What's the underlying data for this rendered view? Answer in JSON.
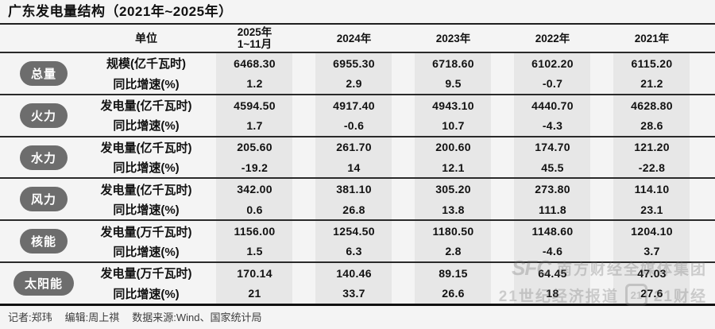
{
  "page": {
    "title": "广东发电量结构（2021年~2025年）",
    "footer": {
      "reporter": "记者:郑玮",
      "editor": "编辑:周上祺",
      "source": "数据来源:Wind、国家统计局"
    },
    "watermark": {
      "brand": "SFC",
      "line1": "南方财经全媒体集团",
      "line2a": "21世纪经济报道",
      "badge": "21",
      "line2b": "21财经"
    },
    "colors": {
      "background": "#f4f4f4",
      "column_band": "#e7e7e7",
      "badge": "#6d6d6d",
      "rule": "#2a2a2a"
    }
  },
  "chart_data": {
    "type": "table",
    "title": "广东发电量结构（2021年~2025年）",
    "unit_header": "单位",
    "columns": [
      {
        "line1": "2025年",
        "line2": "1~11月"
      },
      {
        "line1": "2024年",
        "line2": ""
      },
      {
        "line1": "2023年",
        "line2": ""
      },
      {
        "line1": "2022年",
        "line2": ""
      },
      {
        "line1": "2021年",
        "line2": ""
      }
    ],
    "growth_label": "同比增速(%)",
    "groups": [
      {
        "label": "总量",
        "metric_label": "规模(亿千瓦时)",
        "growth_label": "同比增速(%)",
        "values": [
          "6468.30",
          "6955.30",
          "6718.60",
          "6102.20",
          "6115.20"
        ],
        "growth": [
          "1.2",
          "2.9",
          "9.5",
          "-0.7",
          "21.2"
        ]
      },
      {
        "label": "火力",
        "metric_label": "发电量(亿千瓦时)",
        "growth_label": "同比增速(%)",
        "values": [
          "4594.50",
          "4917.40",
          "4943.10",
          "4440.70",
          "4628.80"
        ],
        "growth": [
          "1.7",
          "-0.6",
          "10.7",
          "-4.3",
          "28.6"
        ]
      },
      {
        "label": "水力",
        "metric_label": "发电量(亿千瓦时)",
        "growth_label": "同比增速(%)",
        "values": [
          "205.60",
          "261.70",
          "200.60",
          "174.70",
          "121.20"
        ],
        "growth": [
          "-19.2",
          "14",
          "12.1",
          "45.5",
          "-22.8"
        ]
      },
      {
        "label": "风力",
        "metric_label": "发电量(亿千瓦时)",
        "growth_label": "同比增速(%)",
        "values": [
          "342.00",
          "381.10",
          "305.20",
          "273.80",
          "114.10"
        ],
        "growth": [
          "0.6",
          "26.8",
          "13.8",
          "111.8",
          "23.1"
        ]
      },
      {
        "label": "核能",
        "metric_label": "发电量(万千瓦时)",
        "growth_label": "同比增速(%)",
        "values": [
          "1156.00",
          "1254.50",
          "1180.50",
          "1148.60",
          "1204.10"
        ],
        "growth": [
          "1.5",
          "6.3",
          "2.8",
          "-4.6",
          "3.7"
        ]
      },
      {
        "label": "太阳能",
        "metric_label": "发电量(万千瓦时)",
        "growth_label": "同比增速(%)",
        "values": [
          "170.14",
          "140.46",
          "89.15",
          "64.45",
          "47.03"
        ],
        "growth": [
          "21",
          "33.7",
          "26.6",
          "18",
          "27.6"
        ]
      }
    ]
  }
}
